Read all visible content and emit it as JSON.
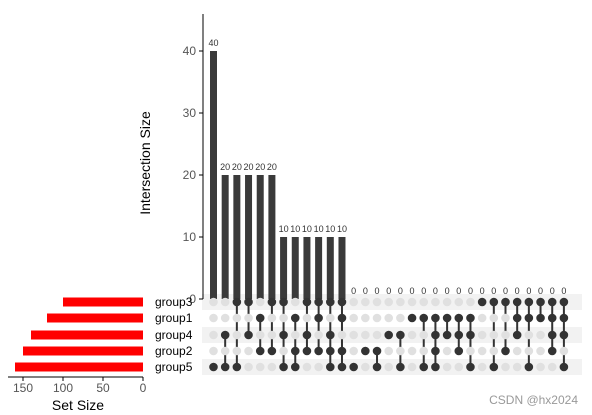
{
  "chart_data": {
    "type": "upset",
    "colors": {
      "bar": "#3a3a3a",
      "set_bar": "#ff0000",
      "dot_on": "#333333",
      "dot_off": "#e0e0e0",
      "stripe": "#f2f2f2"
    },
    "top": {
      "ylabel": "Intersection Size",
      "yticks": [
        0,
        10,
        20,
        30,
        40
      ],
      "ylim": [
        0,
        46
      ],
      "values": [
        40,
        20,
        20,
        20,
        20,
        20,
        10,
        10,
        10,
        10,
        10,
        10,
        0,
        0,
        0,
        0,
        0,
        0,
        0,
        0,
        0,
        0,
        0,
        0,
        0,
        0,
        0,
        0,
        0,
        0,
        0
      ],
      "labels": [
        "40",
        "20",
        "20",
        "20",
        "20",
        "20",
        "10",
        "10",
        "10",
        "10",
        "10",
        "10",
        "0",
        "0",
        "0",
        "0",
        "0",
        "0",
        "0",
        "0",
        "0",
        "0",
        "0",
        "0",
        "0",
        "0",
        "0",
        "0",
        "0",
        "0",
        "0"
      ]
    },
    "sets": {
      "names": [
        "group3",
        "group1",
        "group4",
        "group2",
        "group5"
      ],
      "sizes": [
        100,
        120,
        140,
        150,
        160
      ],
      "xlabel": "Set Size",
      "xticks": [
        "150",
        "100",
        "50",
        "0"
      ],
      "xtick_values": [
        150,
        100,
        50,
        0
      ],
      "xlim": [
        0,
        170
      ]
    },
    "matrix": [
      [
        4
      ],
      [
        2,
        4
      ],
      [
        0,
        4
      ],
      [
        0,
        2
      ],
      [
        1,
        3
      ],
      [
        0,
        3
      ],
      [
        0,
        2,
        4
      ],
      [
        1,
        3,
        4
      ],
      [
        0,
        2,
        3
      ],
      [
        0,
        1,
        3
      ],
      [
        0,
        2,
        3,
        4
      ],
      [
        0,
        1,
        3,
        4
      ],
      [
        4
      ],
      [
        3
      ],
      [
        3,
        4
      ],
      [
        2
      ],
      [
        2,
        4
      ],
      [
        1
      ],
      [
        1,
        4
      ],
      [
        1,
        2,
        3,
        4
      ],
      [
        1,
        2
      ],
      [
        1,
        2,
        3
      ],
      [
        1,
        2,
        4
      ],
      [
        0
      ],
      [
        0,
        4
      ],
      [
        0,
        3
      ],
      [
        0,
        1,
        2
      ],
      [
        0,
        1,
        4
      ],
      [
        0,
        1
      ],
      [
        0,
        1,
        2,
        3
      ],
      [
        0,
        1,
        2,
        4
      ]
    ]
  },
  "watermark": "CSDN @hx2024"
}
